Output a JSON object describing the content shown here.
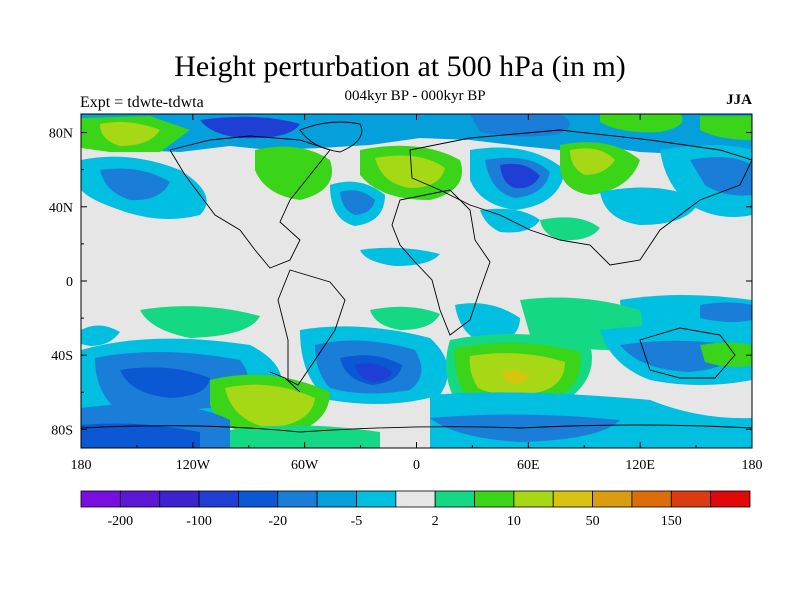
{
  "title": "Height perturbation at 500 hPa (in m)",
  "subtitle": "004kyr BP - 000kyr BP",
  "left_label": "Expt = tdwte-tdwta",
  "right_label": "JJA",
  "x_ticks": [
    "180",
    "120W",
    "60W",
    "0",
    "60E",
    "120E",
    "180"
  ],
  "y_ticks": [
    "80N",
    "40N",
    "0",
    "40S",
    "80S"
  ],
  "colorbar": {
    "colors": [
      "#7a0ee0",
      "#5a17d6",
      "#3d22d0",
      "#1f3ed4",
      "#0b58d4",
      "#1a7ed8",
      "#05a0dc",
      "#00bfe0",
      "#e6e6e6",
      "#15d884",
      "#3ad418",
      "#a6d816",
      "#d6c410",
      "#dc9c10",
      "#dc6e0a",
      "#dc3a10",
      "#e00808"
    ],
    "labels": [
      "-200",
      "-100",
      "-20",
      "-5",
      "2",
      "10",
      "50",
      "150"
    ]
  },
  "palette": {
    "blue_dark": "#1f3ed4",
    "blue_mid": "#1a7ed8",
    "blue": "#05a0dc",
    "cyan": "#00bfe0",
    "gray": "#e6e6e6",
    "green_light": "#15d884",
    "green": "#3ad418",
    "yellow_green": "#a6d816",
    "olive": "#d6c410",
    "orange": "#dc9c10"
  }
}
